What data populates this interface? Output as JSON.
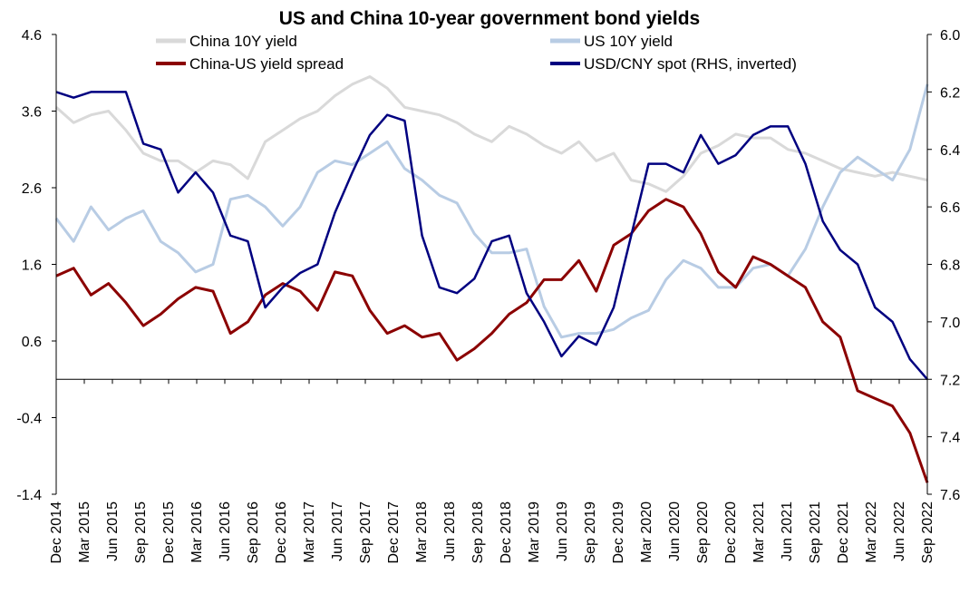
{
  "chart_data": {
    "type": "line",
    "title": "US and China 10-year government bond yields",
    "x_tick_labels": [
      "Dec 2014",
      "Mar 2015",
      "Jun 2015",
      "Sep 2015",
      "Dec 2015",
      "Mar 2016",
      "Jun 2016",
      "Sep 2016",
      "Dec 2016",
      "Mar 2017",
      "Jun 2017",
      "Sep 2017",
      "Dec 2017",
      "Mar 2018",
      "Jun 2018",
      "Sep 2018",
      "Dec 2018",
      "Mar 2019",
      "Jun 2019",
      "Sep 2019",
      "Dec 2019",
      "Mar 2020",
      "Jun 2020",
      "Sep 2020",
      "Dec 2020",
      "Mar 2021",
      "Jun 2021",
      "Sep 2021",
      "Dec 2021",
      "Mar 2022",
      "Jun 2022",
      "Sep 2022"
    ],
    "y_left": {
      "ylim": [
        -1.4,
        4.6
      ],
      "ticks": [
        -1.4,
        -0.4,
        0.6,
        1.6,
        2.6,
        3.6,
        4.6
      ],
      "labels": [
        "-1.4",
        "-0.4",
        "0.6",
        "1.6",
        "2.6",
        "3.6",
        "4.6"
      ]
    },
    "y_right": {
      "ylim": [
        6.0,
        7.6
      ],
      "inverted": true,
      "ticks": [
        6.0,
        6.2,
        6.4,
        6.6,
        6.8,
        7.0,
        7.2,
        7.4,
        7.6
      ],
      "labels": [
        "6.0",
        "6.2",
        "6.4",
        "6.6",
        "6.8",
        "7.0",
        "7.2",
        "7.4",
        "7.6"
      ]
    },
    "legend_position": "top",
    "series": [
      {
        "name": "China 10Y yield",
        "axis": "left",
        "color": "#d9d9d9",
        "values": [
          3.65,
          3.45,
          3.55,
          3.6,
          3.35,
          3.05,
          2.95,
          2.95,
          2.8,
          2.95,
          2.9,
          2.72,
          3.2,
          3.35,
          3.5,
          3.6,
          3.8,
          3.95,
          4.05,
          3.9,
          3.65,
          3.6,
          3.55,
          3.45,
          3.3,
          3.2,
          3.4,
          3.3,
          3.15,
          3.05,
          3.2,
          2.95,
          3.05,
          2.7,
          2.65,
          2.55,
          2.75,
          3.05,
          3.15,
          3.3,
          3.25,
          3.25,
          3.1,
          3.05,
          2.95,
          2.85,
          2.8,
          2.75,
          2.8,
          2.75,
          2.7
        ]
      },
      {
        "name": "US 10Y yield",
        "axis": "left",
        "color": "#b8cce4",
        "values": [
          2.2,
          1.9,
          2.35,
          2.05,
          2.2,
          2.3,
          1.9,
          1.75,
          1.5,
          1.6,
          2.45,
          2.5,
          2.35,
          2.1,
          2.35,
          2.8,
          2.95,
          2.9,
          3.05,
          3.2,
          2.85,
          2.7,
          2.5,
          2.4,
          2.0,
          1.75,
          1.75,
          1.8,
          1.05,
          0.65,
          0.7,
          0.7,
          0.75,
          0.9,
          1.0,
          1.4,
          1.65,
          1.55,
          1.3,
          1.3,
          1.55,
          1.6,
          1.45,
          1.8,
          2.35,
          2.8,
          3.0,
          2.85,
          2.7,
          3.1,
          3.95
        ]
      },
      {
        "name": "China-US yield spread",
        "axis": "left",
        "color": "#8b0000",
        "values": [
          1.45,
          1.55,
          1.2,
          1.35,
          1.1,
          0.8,
          0.95,
          1.15,
          1.3,
          1.25,
          0.7,
          0.85,
          1.2,
          1.35,
          1.25,
          1.0,
          1.5,
          1.45,
          1.0,
          0.7,
          0.8,
          0.65,
          0.7,
          0.35,
          0.5,
          0.7,
          0.95,
          1.1,
          1.4,
          1.4,
          1.65,
          1.25,
          1.85,
          2.0,
          2.3,
          2.45,
          2.35,
          2.0,
          1.5,
          1.3,
          1.7,
          1.6,
          1.45,
          1.3,
          0.85,
          0.65,
          -0.05,
          -0.15,
          -0.25,
          -0.6,
          -1.25
        ]
      },
      {
        "name": "USD/CNY spot (RHS, inverted)",
        "axis": "right",
        "color": "#000080",
        "values": [
          6.2,
          6.22,
          6.2,
          6.2,
          6.2,
          6.38,
          6.4,
          6.55,
          6.48,
          6.55,
          6.7,
          6.72,
          6.95,
          6.88,
          6.83,
          6.8,
          6.62,
          6.48,
          6.35,
          6.28,
          6.3,
          6.7,
          6.88,
          6.9,
          6.85,
          6.72,
          6.7,
          6.9,
          7.0,
          7.12,
          7.05,
          7.08,
          6.95,
          6.7,
          6.45,
          6.45,
          6.48,
          6.35,
          6.45,
          6.42,
          6.35,
          6.32,
          6.32,
          6.45,
          6.65,
          6.75,
          6.8,
          6.95,
          7.0,
          7.13,
          7.2
        ]
      }
    ]
  }
}
